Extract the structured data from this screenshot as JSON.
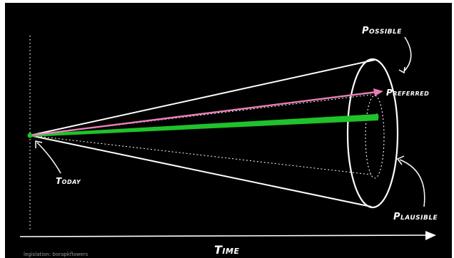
{
  "diagram": {
    "labels": {
      "possible": "Possible",
      "preferred": "Preferred",
      "plausible": "Plausible",
      "today": "Today",
      "time": "Time"
    },
    "caption": "legislation: borapkflowers",
    "colors": {
      "background": "#000000",
      "outer_frame": "#ffffff",
      "lines": "#ffffff",
      "preferred_arrow": "#e87fb4",
      "probable_beam": "#1fc22a",
      "today_dot": "#1fc22a"
    }
  }
}
